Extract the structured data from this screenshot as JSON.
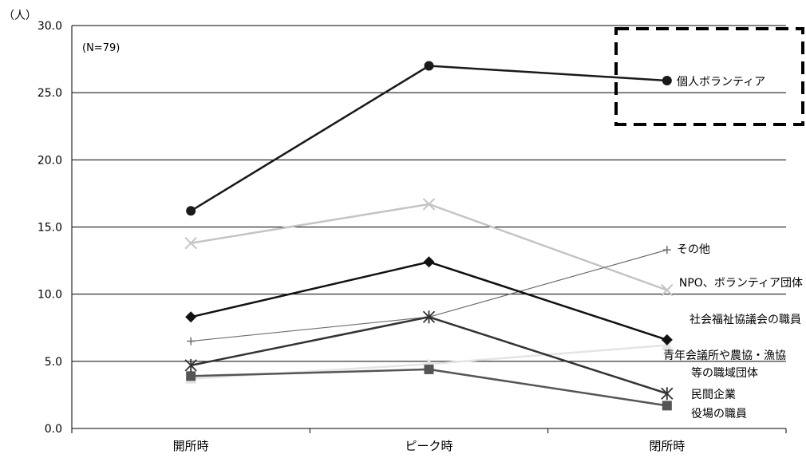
{
  "chart_data": {
    "type": "line",
    "ylabel": "（人）",
    "note": "(N=79)",
    "ylim": [
      0,
      30
    ],
    "yticks": [
      "0.0",
      "5.0",
      "10.0",
      "15.0",
      "20.0",
      "25.0",
      "30.0"
    ],
    "grid": true,
    "categories": [
      "開所時",
      "ピーク時",
      "閉所時"
    ],
    "highlight_box_series": "個人ボランティア",
    "series": [
      {
        "name": "個人ボランティア",
        "values": [
          16.2,
          27.0,
          25.9
        ],
        "color": "#1a1a1a",
        "marker": "circle",
        "label_lines": [
          "個人ボランティア"
        ]
      },
      {
        "name": "NPO、ボランティア団体",
        "values": [
          13.8,
          16.7,
          10.3
        ],
        "color": "#c4c4c4",
        "marker": "x",
        "label_lines": [
          "NPO、ボランティア団体"
        ]
      },
      {
        "name": "社会福祉協議会の職員",
        "values": [
          8.3,
          12.4,
          6.6
        ],
        "color": "#111111",
        "marker": "diamond",
        "label_lines": [
          "社会福祉協議会の職員"
        ]
      },
      {
        "name": "その他",
        "values": [
          6.5,
          8.3,
          13.3
        ],
        "color": "#6e6e6e",
        "marker": "plus",
        "label_lines": [
          "その他"
        ]
      },
      {
        "name": "民間企業",
        "values": [
          4.7,
          8.3,
          2.6
        ],
        "color": "#333333",
        "marker": "asterisk",
        "label_lines": [
          "民間企業"
        ]
      },
      {
        "name": "青年会議所や農協・漁協等の職域団体",
        "values": [
          3.7,
          4.8,
          6.2
        ],
        "color": "#e4e4e4",
        "marker": "triangle",
        "label_lines": [
          "青年会議所や農協・漁協",
          "等の職域団体"
        ]
      },
      {
        "name": "役場の職員",
        "values": [
          3.9,
          4.4,
          1.7
        ],
        "color": "#555555",
        "marker": "square",
        "label_lines": [
          "役場の職員"
        ]
      }
    ]
  }
}
